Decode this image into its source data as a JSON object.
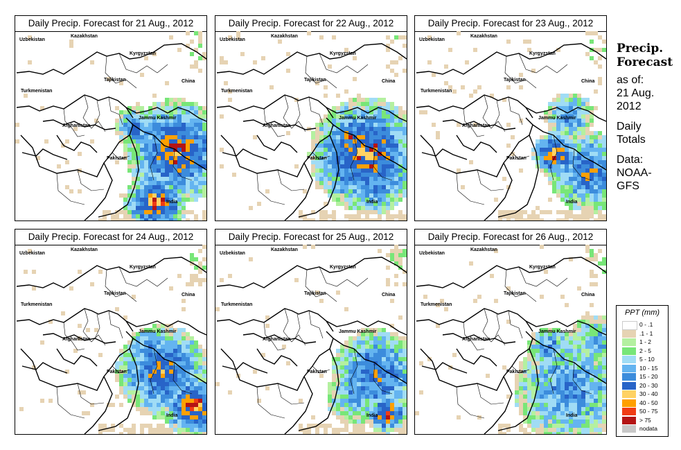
{
  "panels": [
    {
      "title": "Daily Precip. Forecast for  21 Aug., 2012"
    },
    {
      "title": "Daily Precip. Forecast for  22 Aug., 2012"
    },
    {
      "title": "Daily Precip. Forecast for  23 Aug., 2012"
    },
    {
      "title": "Daily Precip. Forecast for  24 Aug., 2012"
    },
    {
      "title": "Daily Precip. Forecast for  25 Aug., 2012"
    },
    {
      "title": "Daily Precip. Forecast for  26 Aug., 2012"
    }
  ],
  "map_labels": {
    "uzbekistan": "Uzbekistan",
    "kazakhstan": "Kazakhstan",
    "kyrgyzstan": "Kyrgyzstan",
    "tajikistan": "Tajikistan",
    "china": "China",
    "turkmenistan": "Turkmenistan",
    "afghanistan": "Afghanistan",
    "jammu_kashmir": "Jammu Kashmir",
    "pakistan": "Pakistan",
    "india": "India"
  },
  "sidebar": {
    "heading_line1": "Precip.",
    "heading_line2": "Forecast",
    "asof_line1": "as of:",
    "asof_line2": "21 Aug.",
    "asof_line3": "2012",
    "daily_line1": "Daily",
    "daily_line2": "Totals",
    "data_line1": "Data:",
    "data_line2": "NOAA-",
    "data_line3": "GFS"
  },
  "legend": {
    "title": "PPT (mm)",
    "items": [
      {
        "label": "0 - .1",
        "color": "#ffffff"
      },
      {
        "label": ".1 - 1",
        "color": "#e6d3b3"
      },
      {
        "label": "1 - 2",
        "color": "#b4f0a0"
      },
      {
        "label": "2 - 5",
        "color": "#78e678"
      },
      {
        "label": "5 - 10",
        "color": "#a0dcf5"
      },
      {
        "label": "10 - 15",
        "color": "#64b4f0"
      },
      {
        "label": "15 - 20",
        "color": "#3c8cdc"
      },
      {
        "label": "20 - 30",
        "color": "#2864c8"
      },
      {
        "label": "30 - 40",
        "color": "#ffd264"
      },
      {
        "label": "40 - 50",
        "color": "#ffa000"
      },
      {
        "label": "50 - 75",
        "color": "#f03c14"
      },
      {
        "label": "> 75",
        "color": "#b41414"
      },
      {
        "label": "nodata",
        "color": "#c8c8c8"
      }
    ]
  }
}
